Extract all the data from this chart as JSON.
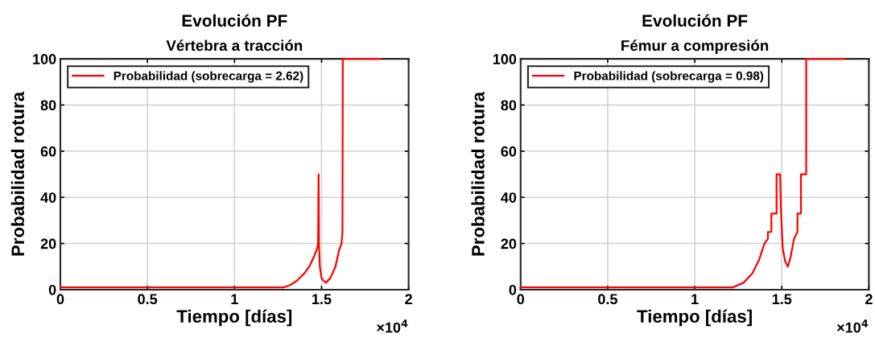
{
  "chart_data": [
    {
      "type": "line",
      "title": "Evolución PF",
      "subtitle": "Vértebra a tracción",
      "xlabel": "Tiempo [días]",
      "ylabel": "Probabilidad rotura",
      "series": [
        {
          "name": "Probabilidad (sobrecarga = 2.62)",
          "color": "#ff0000",
          "x": [
            0,
            1.28,
            1.32,
            1.36,
            1.4,
            1.43,
            1.46,
            1.475,
            1.48,
            1.483,
            1.485,
            1.49,
            1.5,
            1.51,
            1.525,
            1.55,
            1.58,
            1.6,
            1.615,
            1.62,
            1.622,
            1.84
          ],
          "values": [
            1,
            1,
            2,
            4,
            7,
            10,
            15,
            18,
            20,
            50,
            20,
            10,
            5,
            4,
            3,
            5,
            10,
            17,
            20,
            25,
            100,
            100
          ]
        }
      ],
      "xlim": [
        0,
        2
      ],
      "ylim": [
        0,
        100
      ],
      "xticks": [
        0,
        0.5,
        1,
        1.5,
        2
      ],
      "yticks": [
        0,
        20,
        40,
        60,
        80,
        100
      ],
      "grid": true,
      "legend": "top left",
      "line_style": "solid",
      "marker": "none",
      "annotations": [
        "×10$^{4}$"
      ]
    },
    {
      "type": "line",
      "title": "Evolución PF",
      "subtitle": "Fémur a compresión",
      "xlabel": "Tiempo [días]",
      "ylabel": "Probabilidad rotura",
      "series": [
        {
          "name": "Probabilidad (sobrecarga = 0.98)",
          "color": "#ff0000",
          "x": [
            0,
            1.22,
            1.28,
            1.33,
            1.37,
            1.4,
            1.42,
            1.42,
            1.44,
            1.44,
            1.47,
            1.47,
            1.49,
            1.495,
            1.505,
            1.52,
            1.535,
            1.55,
            1.57,
            1.59,
            1.59,
            1.61,
            1.61,
            1.64,
            1.64,
            1.86
          ],
          "values": [
            1,
            1,
            3,
            7,
            13,
            20,
            22,
            25,
            25,
            33,
            33,
            50,
            50,
            35,
            18,
            12,
            10,
            14,
            22,
            25,
            33,
            33,
            50,
            50,
            100,
            100
          ]
        }
      ],
      "xlim": [
        0,
        2
      ],
      "ylim": [
        0,
        100
      ],
      "xticks": [
        0,
        0.5,
        1,
        1.5,
        2
      ],
      "yticks": [
        0,
        20,
        40,
        60,
        80,
        100
      ],
      "grid": true,
      "legend": "top left",
      "line_style": "solid",
      "marker": "none",
      "annotations": [
        "×10$^{4}$"
      ]
    }
  ]
}
